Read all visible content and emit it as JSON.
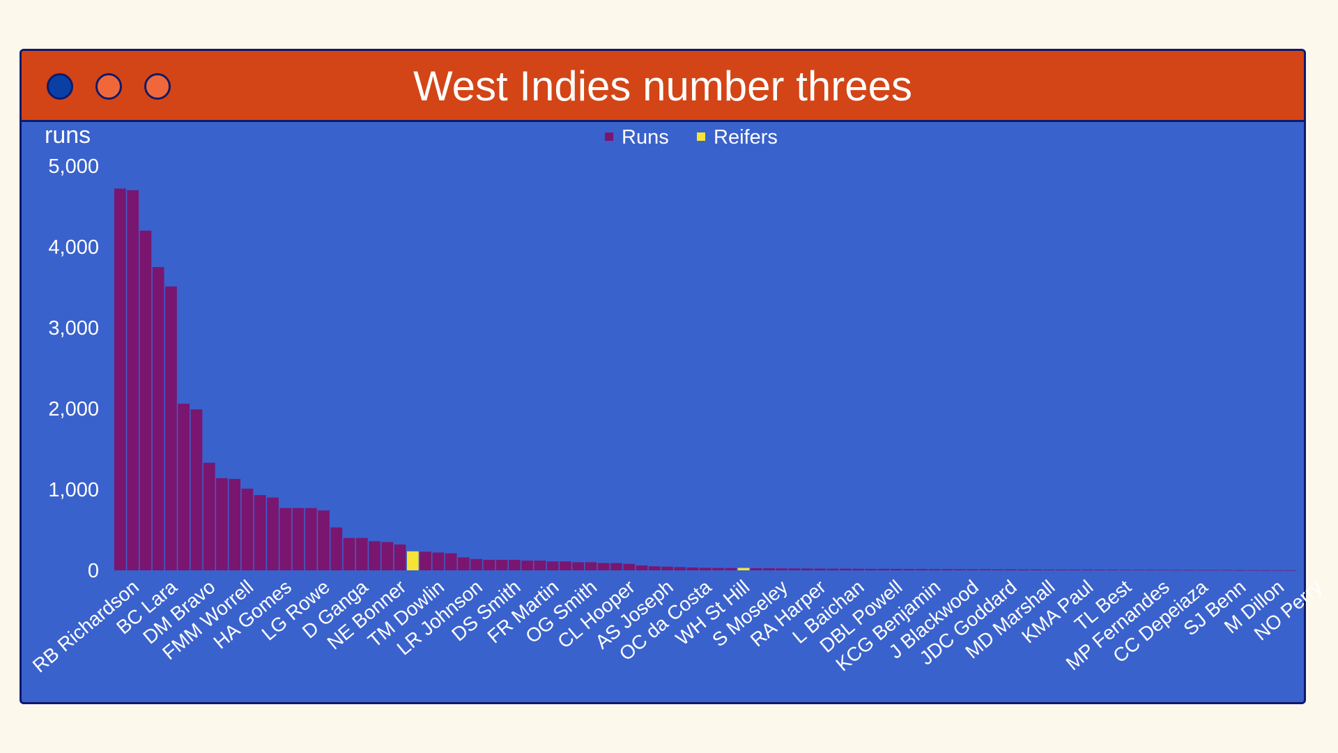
{
  "window": {
    "title": "West Indies number threes",
    "buttons": [
      {
        "name": "close",
        "color": "#0a3fa6"
      },
      {
        "name": "minimize",
        "color": "#f0683a"
      },
      {
        "name": "maximize",
        "color": "#f0683a"
      }
    ]
  },
  "colors": {
    "frame": "#3a62cc",
    "titlebar": "#d34516",
    "border": "#0e1a6b",
    "runs": "#7a1670",
    "reifers": "#f7e336",
    "text": "#ffffff"
  },
  "chart_data": {
    "type": "bar",
    "ylabel": "runs",
    "ylim": [
      0,
      5000
    ],
    "yticks": [
      0,
      1000,
      2000,
      3000,
      4000,
      5000
    ],
    "ytick_labels": [
      "0",
      "1,000",
      "2,000",
      "3,000",
      "4,000",
      "5,000"
    ],
    "legend": {
      "placement": "top-center",
      "entries": [
        "Runs",
        "Reifers"
      ]
    },
    "grid": false,
    "shown_tick_labels": [
      "RB Richardson",
      "BC Lara",
      "DM Bravo",
      "FMM Worrell",
      "HA Gomes",
      "LG Rowe",
      "D Ganga",
      "NE Bonner",
      "TM Dowlin",
      "LR Johnson",
      "DS Smith",
      "FR Martin",
      "OG Smith",
      "CL Hooper",
      "AS Joseph",
      "OC da Costa",
      "WH St Hill",
      "S Moseley",
      "RA Harper",
      "L Baichan",
      "DBL Powell",
      "KCG Benjamin",
      "J Blackwood",
      "JDC Goddard",
      "MD Marshall",
      "KMA Paul",
      "TL Best",
      "MP Fernandes",
      "CC Depeiaza",
      "SJ Benn",
      "M Dillon",
      "NO Perry"
    ],
    "series": [
      {
        "name": "Runs",
        "values": [
          4720,
          4700,
          4200,
          3750,
          3510,
          2060,
          1990,
          1330,
          1140,
          1130,
          1010,
          930,
          900,
          770,
          770,
          770,
          740,
          530,
          400,
          400,
          360,
          350,
          320,
          0,
          230,
          220,
          210,
          160,
          140,
          130,
          130,
          130,
          120,
          120,
          110,
          110,
          100,
          100,
          90,
          90,
          80,
          60,
          50,
          45,
          40,
          35,
          32,
          30,
          28,
          0,
          26,
          25,
          24,
          23,
          22,
          21,
          20,
          20,
          19,
          18,
          18,
          17,
          16,
          16,
          15,
          15,
          14,
          13,
          13,
          12,
          12,
          11,
          11,
          10,
          10,
          9,
          9,
          8,
          8,
          7,
          7,
          6,
          6,
          5,
          5,
          4,
          4,
          4,
          3,
          3,
          2,
          2,
          2
        ]
      },
      {
        "name": "Reifers",
        "values": [
          0,
          0,
          0,
          0,
          0,
          0,
          0,
          0,
          0,
          0,
          0,
          0,
          0,
          0,
          0,
          0,
          0,
          0,
          0,
          0,
          0,
          0,
          0,
          235,
          0,
          0,
          0,
          0,
          0,
          0,
          0,
          0,
          0,
          0,
          0,
          0,
          0,
          0,
          0,
          0,
          0,
          0,
          0,
          0,
          0,
          0,
          0,
          0,
          0,
          30,
          0,
          0,
          0,
          0,
          0,
          0,
          0,
          0,
          0,
          0,
          0,
          0,
          0,
          0,
          0,
          0,
          0,
          0,
          0,
          0,
          0,
          0,
          0,
          0,
          0,
          0,
          0,
          0,
          0,
          0,
          0,
          0,
          0,
          0,
          0,
          0,
          0,
          0,
          0,
          0,
          0,
          0,
          0
        ]
      }
    ]
  }
}
